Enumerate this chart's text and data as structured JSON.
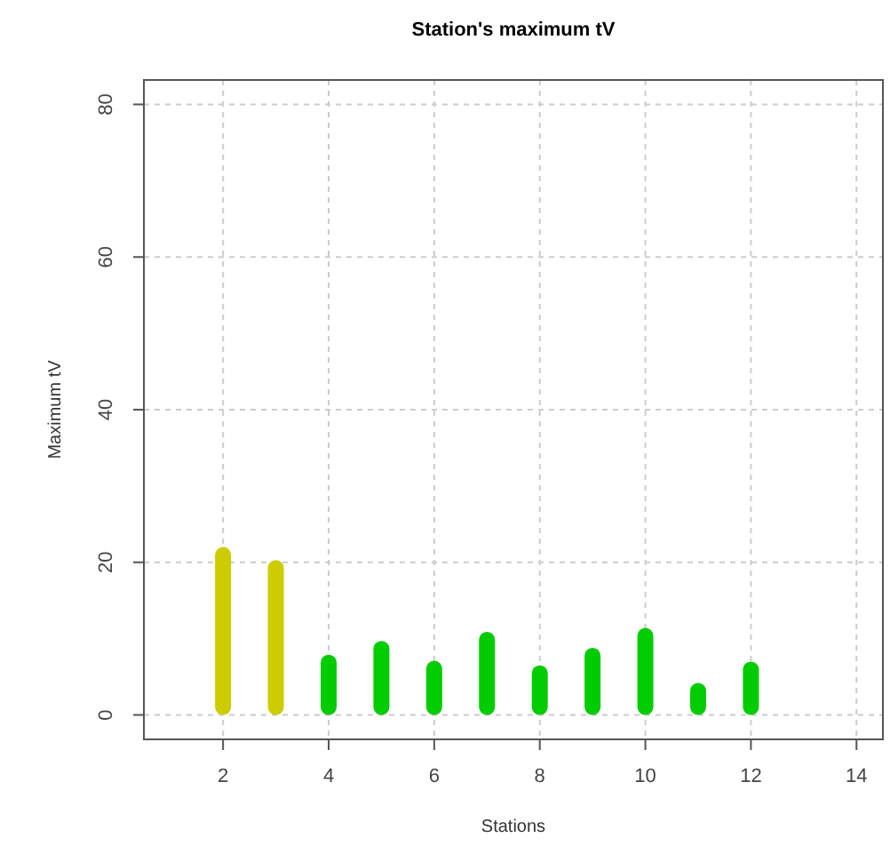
{
  "chart_data": {
    "type": "bar",
    "title": "Station's maximum tV",
    "xlabel": "Stations",
    "ylabel": "Maximum tV",
    "x": [
      2,
      3,
      4,
      5,
      6,
      7,
      8,
      9,
      10,
      11,
      12
    ],
    "values": [
      22.0,
      20.3,
      7.9,
      9.7,
      7.1,
      10.9,
      6.5,
      8.8,
      11.4,
      4.2,
      7.0
    ],
    "colors": [
      "#cccc00",
      "#cccc00",
      "#00cc00",
      "#00cc00",
      "#00cc00",
      "#00cc00",
      "#00cc00",
      "#00cc00",
      "#00cc00",
      "#00cc00",
      "#00cc00"
    ],
    "xlim": [
      0.5,
      14.5
    ],
    "xticks": [
      2,
      4,
      6,
      8,
      10,
      12,
      14
    ],
    "ylim": [
      -3.2,
      83.2
    ],
    "yticks": [
      0,
      20,
      40,
      60,
      80
    ],
    "grid": true
  }
}
